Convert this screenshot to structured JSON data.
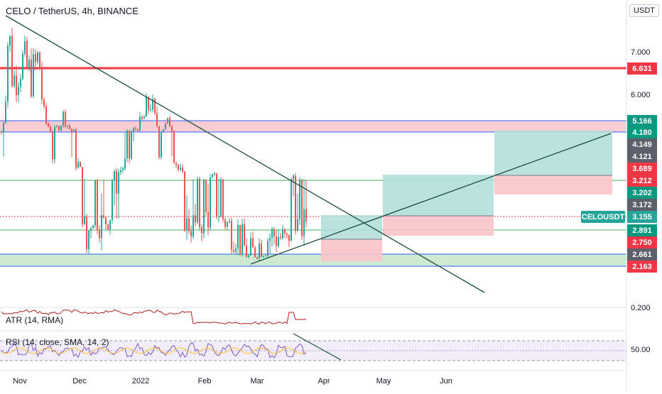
{
  "header": {
    "symbol_title": "CELO / TetherUS, 4h, BINANCE",
    "currency": "USDT"
  },
  "panes": {
    "atr_label": "ATR (14, RMA)",
    "atr_tick": "0.200",
    "rsi_label": "RSI (14, close, SMA, 14, 2)",
    "rsi_tick": "50.00"
  },
  "chart_data": {
    "type": "candlestick",
    "title": "CELO / TetherUS, 4h, BINANCE",
    "y_axis_ticks": [
      "7.000",
      "6.000"
    ],
    "x_axis_ticks": [
      "Nov",
      "Dec",
      "2022",
      "Feb",
      "Mar",
      "Apr",
      "May",
      "Jun"
    ],
    "price_tags": [
      {
        "label": "6.631",
        "value": 6.631,
        "color": "#f23645"
      },
      {
        "label": "5.166",
        "value": 5.166,
        "color": "#089981"
      },
      {
        "label": "4.180",
        "value": 4.18,
        "color": "#089981"
      },
      {
        "label": "4.149",
        "value": 4.149,
        "color": "#5d606b"
      },
      {
        "label": "4.121",
        "value": 4.121,
        "color": "#5d606b"
      },
      {
        "label": "3.689",
        "value": 3.689,
        "color": "#f23645"
      },
      {
        "label": "3.212",
        "value": 3.212,
        "color": "#f23645"
      },
      {
        "label": "3.202",
        "value": 3.202,
        "color": "#089981"
      },
      {
        "label": "3.172",
        "value": 3.172,
        "color": "#5d606b"
      },
      {
        "label": "CELOUSDT",
        "value": 3.155,
        "color": "#26a69a"
      },
      {
        "label": "3.155",
        "value": 3.155,
        "color": "#26a69a"
      },
      {
        "label": "2.891",
        "value": 2.891,
        "color": "#089981"
      },
      {
        "label": "2.750",
        "value": 2.75,
        "color": "#f23645"
      },
      {
        "label": "2.661",
        "value": 2.661,
        "color": "#5d606b"
      },
      {
        "label": "2.163",
        "value": 2.163,
        "color": "#f23645"
      }
    ],
    "horizontal_lines": [
      {
        "value": 6.631,
        "color": "#f23645",
        "style": "solid-thick"
      },
      {
        "value": 3.212,
        "color": "#4caf50",
        "style": "solid"
      },
      {
        "value": 3.155,
        "color": "#f23645",
        "style": "dotted"
      },
      {
        "value": 2.891,
        "color": "#4caf50",
        "style": "solid"
      }
    ],
    "zones": [
      {
        "from": 4.18,
        "to": 5.166,
        "color": "#f7c5cb",
        "border": "#2962ff"
      },
      {
        "from": 2.163,
        "to": 2.661,
        "color": "#c8e6c9",
        "border": "#2962ff"
      }
    ],
    "current_price": 3.155
  }
}
